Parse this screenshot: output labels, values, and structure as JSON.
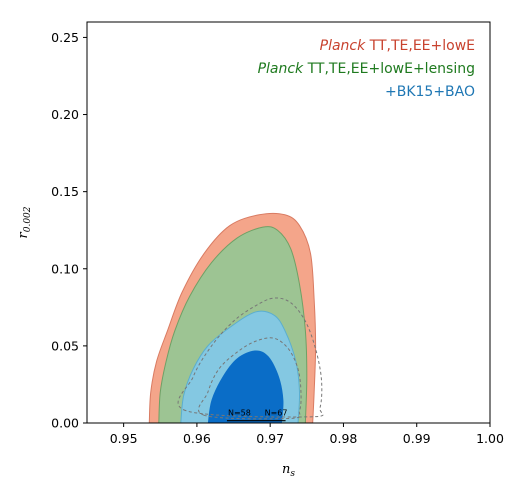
{
  "chart_data": {
    "type": "contour",
    "xlabel": "n",
    "xlabel_sub": "s",
    "ylabel": "r",
    "ylabel_sub": "0.002",
    "xlim": [
      0.945,
      1.0
    ],
    "ylim": [
      0.0,
      0.26
    ],
    "x_ticks": [
      "0.95",
      "0.96",
      "0.97",
      "0.98",
      "0.99",
      "1.00"
    ],
    "x_tick_values": [
      0.95,
      0.96,
      0.97,
      0.98,
      0.99,
      1.0
    ],
    "y_ticks": [
      "0.00",
      "0.05",
      "0.10",
      "0.15",
      "0.20",
      "0.25"
    ],
    "y_tick_values": [
      0.0,
      0.05,
      0.1,
      0.15,
      0.2,
      0.25
    ],
    "grid": false,
    "legend_position": "top-right",
    "legend": [
      {
        "italic": "Planck",
        "rest": " TT,TE,EE+lowE",
        "color": "#c8422e"
      },
      {
        "italic": "Planck",
        "rest": " TT,TE,EE+lowE+lensing",
        "color": "#1f7a1f"
      },
      {
        "italic": "",
        "rest": "+BK15+BAO",
        "color": "#1f77b4"
      }
    ],
    "series": [
      {
        "label_ref": 0,
        "fill_outer": "#f4a58a",
        "stroke_outer": "#d97b62",
        "outer": [
          [
            0.9535,
            0
          ],
          [
            0.9537,
            0.02
          ],
          [
            0.9545,
            0.04
          ],
          [
            0.956,
            0.06
          ],
          [
            0.958,
            0.085
          ],
          [
            0.961,
            0.11
          ],
          [
            0.9645,
            0.128
          ],
          [
            0.9685,
            0.135
          ],
          [
            0.972,
            0.135
          ],
          [
            0.974,
            0.128
          ],
          [
            0.9755,
            0.11
          ],
          [
            0.976,
            0.08
          ],
          [
            0.9762,
            0.05
          ],
          [
            0.976,
            0.02
          ],
          [
            0.9758,
            0
          ]
        ]
      },
      {
        "label_ref": 1,
        "fill_outer": "#9dc493",
        "stroke_outer": "#6fa065",
        "outer": [
          [
            0.9548,
            0
          ],
          [
            0.955,
            0.02
          ],
          [
            0.9558,
            0.04
          ],
          [
            0.957,
            0.06
          ],
          [
            0.959,
            0.082
          ],
          [
            0.962,
            0.104
          ],
          [
            0.9655,
            0.12
          ],
          [
            0.969,
            0.127
          ],
          [
            0.971,
            0.125
          ],
          [
            0.9728,
            0.113
          ],
          [
            0.974,
            0.09
          ],
          [
            0.9748,
            0.06
          ],
          [
            0.975,
            0.03
          ],
          [
            0.9748,
            0
          ]
        ]
      },
      {
        "label_ref": 2,
        "fill_outer": "#84c8e2",
        "stroke_outer": "#5aaed0",
        "fill_inner": "#0a6dc7",
        "outer": [
          [
            0.9578,
            0
          ],
          [
            0.9582,
            0.018
          ],
          [
            0.9595,
            0.035
          ],
          [
            0.9615,
            0.05
          ],
          [
            0.9645,
            0.062
          ],
          [
            0.968,
            0.072
          ],
          [
            0.9705,
            0.07
          ],
          [
            0.972,
            0.06
          ],
          [
            0.9735,
            0.04
          ],
          [
            0.974,
            0.02
          ],
          [
            0.9738,
            0
          ]
        ],
        "inner": [
          [
            0.9615,
            0
          ],
          [
            0.962,
            0.015
          ],
          [
            0.9635,
            0.03
          ],
          [
            0.9655,
            0.042
          ],
          [
            0.968,
            0.047
          ],
          [
            0.9698,
            0.043
          ],
          [
            0.9712,
            0.03
          ],
          [
            0.9718,
            0.015
          ],
          [
            0.9716,
            0
          ]
        ]
      }
    ],
    "dashed_contours": [
      [
        [
          0.9585,
          0.008
        ],
        [
          0.9595,
          0.03
        ],
        [
          0.962,
          0.05
        ],
        [
          0.965,
          0.066
        ],
        [
          0.968,
          0.076
        ],
        [
          0.9705,
          0.081
        ],
        [
          0.9728,
          0.078
        ],
        [
          0.9748,
          0.066
        ],
        [
          0.9762,
          0.048
        ],
        [
          0.977,
          0.028
        ],
        [
          0.9768,
          0.01
        ],
        [
          0.9755,
          0.004
        ]
      ],
      [
        [
          0.961,
          0.005
        ],
        [
          0.9615,
          0.02
        ],
        [
          0.963,
          0.035
        ],
        [
          0.9655,
          0.046
        ],
        [
          0.968,
          0.053
        ],
        [
          0.9705,
          0.055
        ],
        [
          0.9725,
          0.048
        ],
        [
          0.9738,
          0.035
        ],
        [
          0.9742,
          0.02
        ],
        [
          0.974,
          0.008
        ],
        [
          0.9728,
          0.003
        ]
      ]
    ],
    "annotations": [
      {
        "text": "N=58",
        "x": 0.9658,
        "y": 0.005
      },
      {
        "text": "N=67",
        "x": 0.9708,
        "y": 0.005
      }
    ],
    "annotation_segment": [
      [
        0.9641,
        0.0015
      ],
      [
        0.9721,
        0.0015
      ]
    ]
  }
}
